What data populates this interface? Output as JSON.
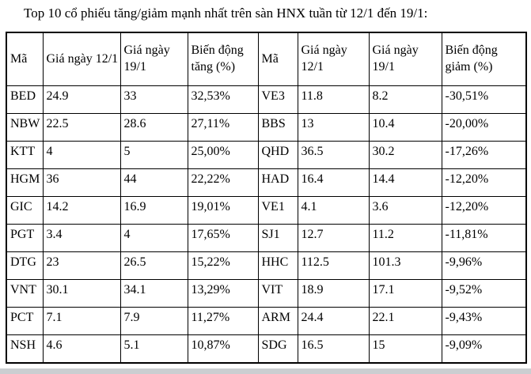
{
  "title": "Top 10 cổ phiếu tăng/giảm mạnh nhất trên sàn HNX tuần từ 12/1 đến 19/1:",
  "table": {
    "headers": [
      "Mã",
      "Giá ngày 12/1",
      "Giá ngày 19/1",
      "Biến động tăng (%)",
      "Mã",
      "Giá ngày 12/1",
      "Giá ngày 19/1",
      "Biến động giảm (%)"
    ],
    "rows": [
      [
        "BED",
        "24.9",
        "33",
        "32,53%",
        "VE3",
        "11.8",
        "8.2",
        "-30,51%"
      ],
      [
        "NBW",
        "22.5",
        "28.6",
        "27,11%",
        "BBS",
        "13",
        "10.4",
        "-20,00%"
      ],
      [
        "KTT",
        "4",
        "5",
        "25,00%",
        "QHD",
        "36.5",
        "30.2",
        "-17,26%"
      ],
      [
        "HGM",
        "36",
        "44",
        "22,22%",
        "HAD",
        "16.4",
        "14.4",
        "-12,20%"
      ],
      [
        "GIC",
        "14.2",
        "16.9",
        "19,01%",
        "VE1",
        "4.1",
        "3.6",
        "-12,20%"
      ],
      [
        "PGT",
        "3.4",
        "4",
        "17,65%",
        "SJ1",
        "12.7",
        "11.2",
        "-11,81%"
      ],
      [
        "DTG",
        "23",
        "26.5",
        "15,22%",
        "HHC",
        "112.5",
        "101.3",
        "-9,96%"
      ],
      [
        "VNT",
        "30.1",
        "34.1",
        "13,29%",
        "VIT",
        "18.9",
        "17.1",
        "-9,52%"
      ],
      [
        "PCT",
        "7.1",
        "7.9",
        "11,27%",
        "ARM",
        "24.4",
        "22.1",
        "-9,43%"
      ],
      [
        "NSH",
        "4.6",
        "5.1",
        "10,87%",
        "SDG",
        "16.5",
        "15",
        "-9,09%"
      ]
    ]
  }
}
